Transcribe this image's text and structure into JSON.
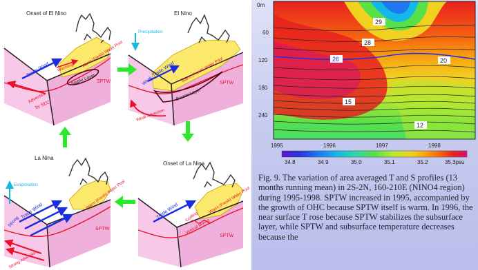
{
  "panels": [
    {
      "title": "Onset of El Nino",
      "labels": {
        "trade_wind": "Trade Wind",
        "warming": "Warming",
        "warm_water_pool": "Warm (Fresh) Water Pool",
        "stable_layer": "Stable Layer",
        "sptw": "SPTW",
        "advected": "Advected",
        "by_sec": "by SEC"
      }
    },
    {
      "title": "El Nino",
      "labels": {
        "precipitation": "Precipitation",
        "weak": "Weak",
        "trade_wind": "Trade Wind",
        "warm_water_pool": "Warm (Fresh) Water Pool",
        "barrier_layer": "Barrier Layer",
        "sptw": "SPTW",
        "weak_advection": "Weak Advection"
      }
    },
    {
      "title": "La Nina",
      "labels": {
        "evaporation": "Evaporation",
        "strong": "Strong",
        "trade_wind": "Trade Wind",
        "warm_water_pool": "Warm (Fresh) Water Pool",
        "sptw": "SPTW",
        "strong_advection": "Strong Advection"
      }
    },
    {
      "title": "Onset of La Nina",
      "labels": {
        "trade_wind": "Trade Wind",
        "cooling": "Cooling",
        "vertical_mixing": "Vertical Mixing",
        "warm_water_pool": "Warm (Fresh) Water Pool",
        "sptw": "SPTW"
      }
    }
  ],
  "chart_data": {
    "type": "heatmap",
    "x_ticks": [
      "1995",
      "1996",
      "1997",
      "1998"
    ],
    "y_ticks": [
      "0m",
      "60",
      "120",
      "180",
      "240"
    ],
    "contour_labels": [
      "29",
      "28",
      "26",
      "20",
      "15",
      "12"
    ],
    "colorbar_ticks": [
      "34.8",
      "34.9",
      "35.0",
      "35.1",
      "35.2",
      "35.3psu"
    ],
    "colors": [
      "#5a18c8",
      "#2838e0",
      "#1e78f0",
      "#14b8e8",
      "#30d8a8",
      "#58e048",
      "#b8e830",
      "#f0d020",
      "#f8a010",
      "#f46010",
      "#e82020",
      "#d41070",
      "#e020c0"
    ]
  },
  "caption": "Fig. 9. The variation of area averaged T and S profiles (13 months running mean) in 2S-2N, 160-210E (NINO4 region) during 1995-1998. SPTW increased in 1995, accompanied by the growth of OHC because SPTW itself is warm. In 1996, the near surface T rose because SPTW stabilizes the subsurface layer, while SPTW and subsurface temperature decreases because the"
}
